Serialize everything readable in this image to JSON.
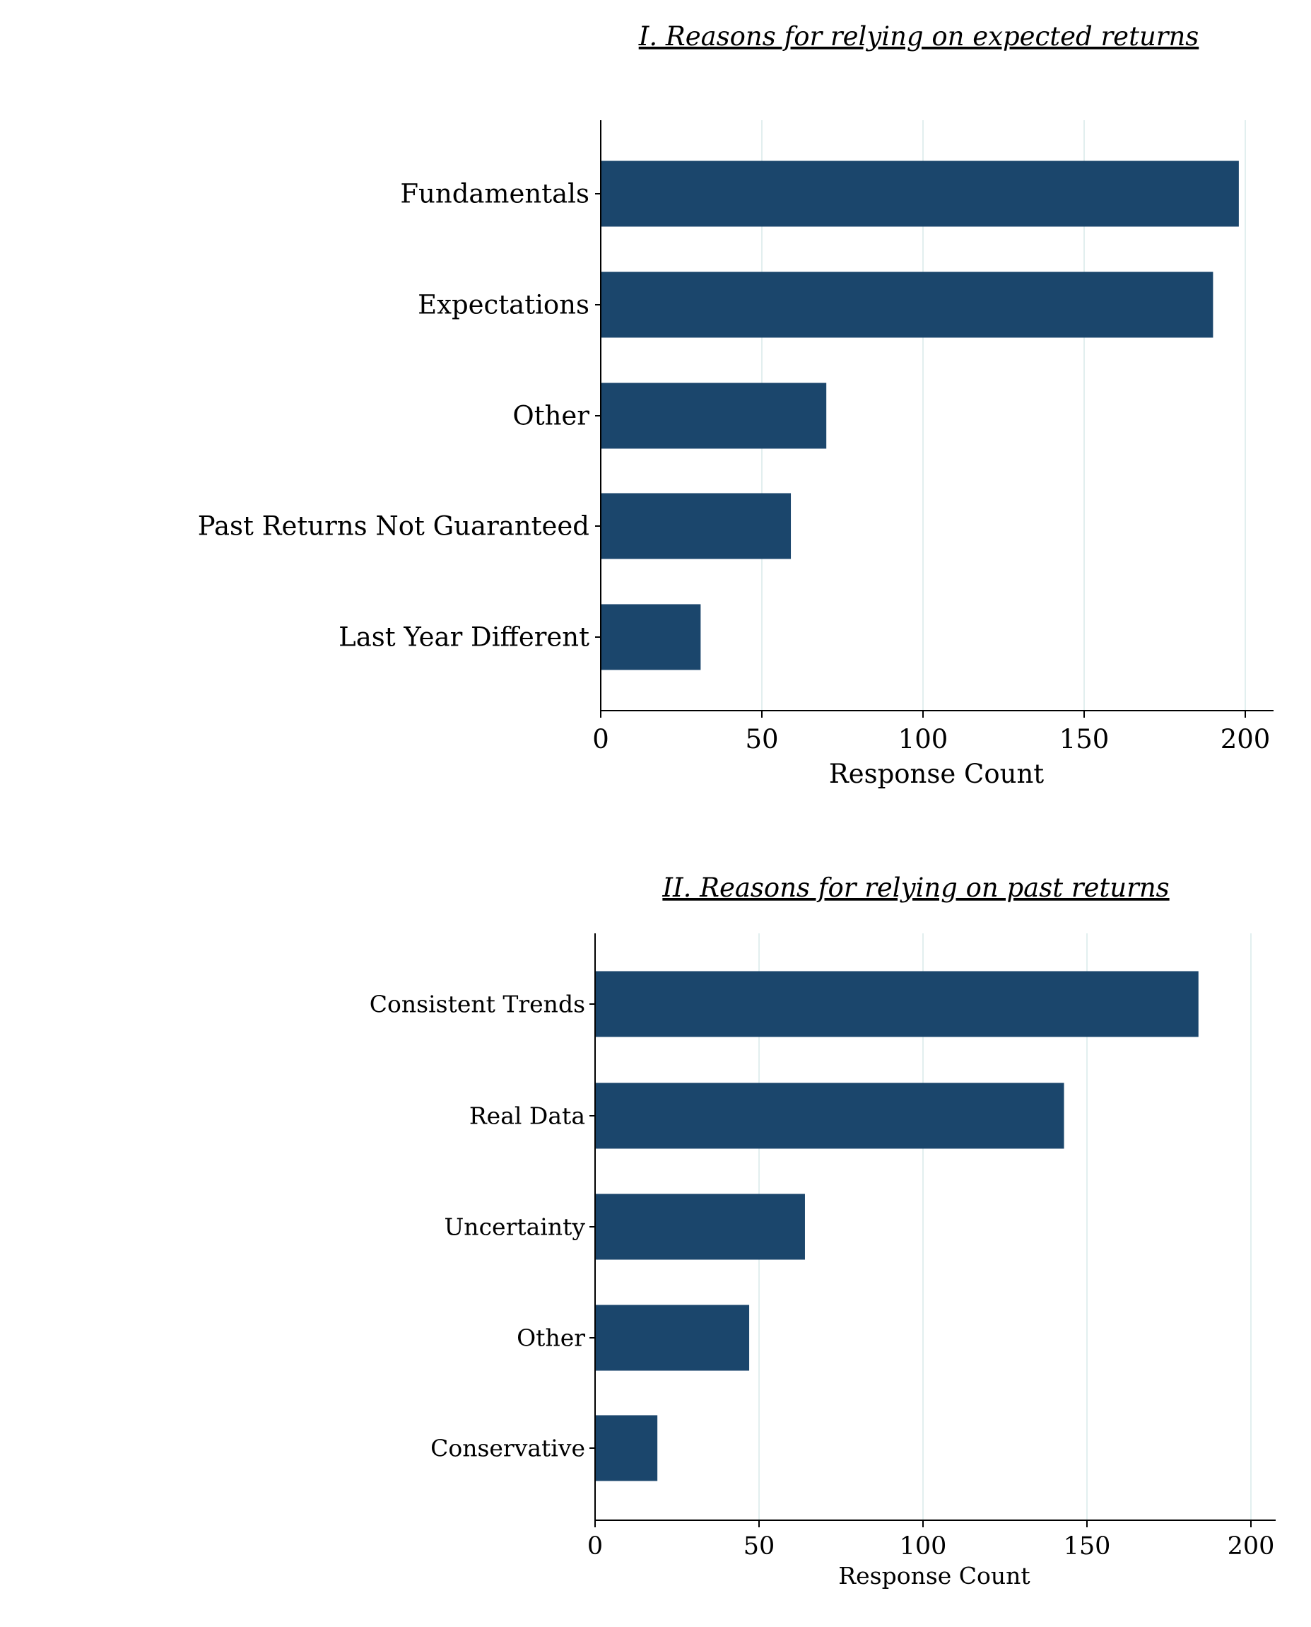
{
  "chart_data": [
    {
      "type": "bar",
      "orientation": "horizontal",
      "title": "I. Reasons for relying on expected returns",
      "xlabel": "Response Count",
      "ylabel": "",
      "categories": [
        "Fundamentals",
        "Expectations",
        "Other",
        "Past Returns Not Guaranteed",
        "Last Year Different"
      ],
      "values": [
        198,
        190,
        70,
        59,
        31
      ],
      "xlim": [
        0,
        208
      ],
      "xticks": [
        0,
        50,
        100,
        150,
        200
      ],
      "xtick_labels": [
        "0",
        "50",
        "100",
        "150",
        "200"
      ],
      "grid": "vertical",
      "bar_color": "#1b466c",
      "grid_color": "#e2efef"
    },
    {
      "type": "bar",
      "orientation": "horizontal",
      "title": "II. Reasons for relying on past returns",
      "xlabel": "Response Count",
      "ylabel": "",
      "categories": [
        "Consistent Trends",
        "Real Data",
        "Uncertainty",
        "Other",
        "Conservative"
      ],
      "values": [
        184,
        143,
        64,
        47,
        19
      ],
      "xlim": [
        0,
        208
      ],
      "xticks": [
        0,
        50,
        100,
        150,
        200
      ],
      "xtick_labels": [
        "0",
        "50",
        "100",
        "150",
        "200"
      ],
      "grid": "vertical",
      "bar_color": "#1b466c",
      "grid_color": "#e2efef"
    }
  ]
}
